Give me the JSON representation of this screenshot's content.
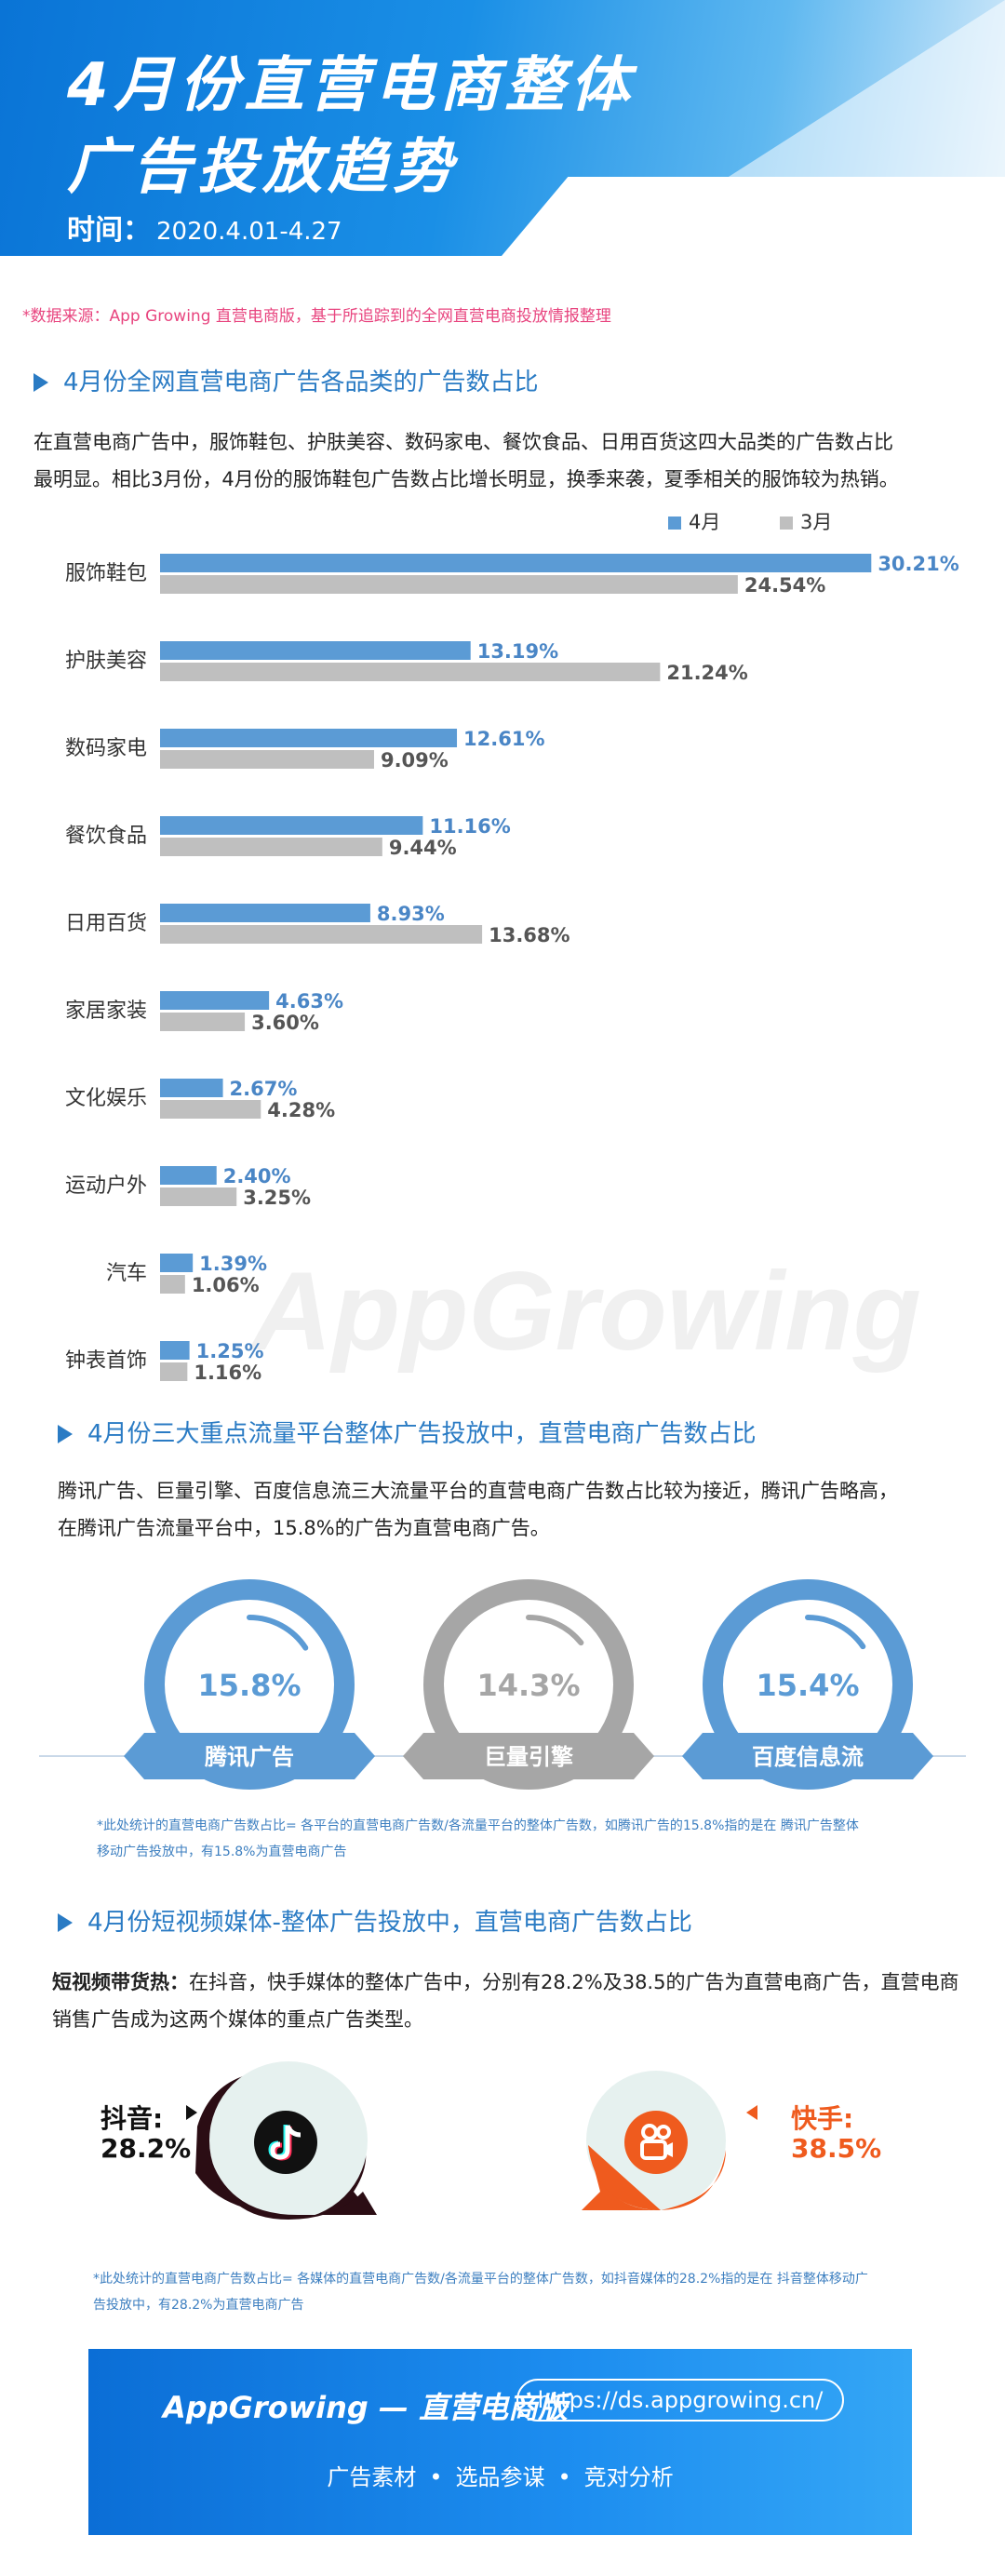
{
  "header": {
    "title_line1": "4月份直营电商整体",
    "title_line2": "广告投放趋势",
    "time_label": "时间：",
    "time_value": "2020.4.01-4.27"
  },
  "source_note": "*数据来源：App Growing 直营电商版，基于所追踪到的全网直营电商投放情报整理",
  "section1": {
    "title": "4月份全网直营电商广告各品类的广告数占比",
    "para_line1": "在直营电商广告中，服饰鞋包、护肤美容、数码家电、餐饮食品、日用百货这四大品类的广告数占比",
    "para_line2": "最明显。相比3月份，4月份的服饰鞋包广告数占比增长明显，换季来袭，夏季相关的服饰较为热销。"
  },
  "chart_data": {
    "type": "bar",
    "orientation": "horizontal",
    "legend_position": "top-right",
    "categories": [
      "服饰鞋包",
      "护肤美容",
      "数码家电",
      "餐饮食品",
      "日用百货",
      "家居家装",
      "文化娱乐",
      "运动户外",
      "汽车",
      "钟表首饰"
    ],
    "series": [
      {
        "name": "4月",
        "values": [
          30.21,
          13.19,
          12.61,
          11.16,
          8.93,
          4.63,
          2.67,
          2.4,
          1.39,
          1.25
        ],
        "labels": [
          "30.21%",
          "13.19%",
          "12.61%",
          "11.16%",
          "8.93%",
          "4.63%",
          "2.67%",
          "2.40%",
          "1.39%",
          "1.25%"
        ],
        "color": "#5b9bd5"
      },
      {
        "name": "3月",
        "values": [
          24.54,
          21.24,
          9.09,
          9.44,
          13.68,
          3.6,
          4.28,
          3.25,
          1.06,
          1.16
        ],
        "labels": [
          "24.54%",
          "21.24%",
          "9.09%",
          "9.44%",
          "13.68%",
          "3.60%",
          "4.28%",
          "3.25%",
          "1.06%",
          "1.16%"
        ],
        "color": "#bfbfbf"
      }
    ],
    "grid": false
  },
  "section2": {
    "title": "4月份三大重点流量平台整体广告投放中，直营电商广告数占比",
    "para_line1": "腾讯广告、巨量引擎、百度信息流三大流量平台的直营电商广告数占比较为接近，腾讯广告略高，",
    "para_line2": "在腾讯广告流量平台中，15.8%的广告为直营电商广告。",
    "platforms": [
      {
        "name": "腾讯广告",
        "value_text": "15.8%",
        "value": 15.8,
        "color": "#5b9bd5"
      },
      {
        "name": "巨量引擎",
        "value_text": "14.3%",
        "value": 14.3,
        "color": "#a6a6a6"
      },
      {
        "name": "百度信息流",
        "value_text": "15.4%",
        "value": 15.4,
        "color": "#5b9bd5"
      }
    ],
    "note_line1": "*此处统计的直营电商广告数占比= 各平台的直营电商广告数/各流量平台的整体广告数，如腾讯广告的15.8%指的是在 腾讯广告整体",
    "note_line2": "移动广告投放中，有15.8%为直营电商广告"
  },
  "section3": {
    "title": "4月份短视频媒体-整体广告投放中，直营电商广告数占比",
    "para_bold": "短视频带货热：",
    "para_rest": "在抖音，快手媒体的整体广告中，分别有28.2%及38.5的广告为直营电商广告，直营电商",
    "para_line2": "销售广告成为这两个媒体的重点广告类型。",
    "douyin": {
      "name": "抖音:",
      "value": "28.2%",
      "value_num": 28.2,
      "color": "#111111"
    },
    "kuaishou": {
      "name": "快手:",
      "value": "38.5%",
      "value_num": 38.5,
      "color": "#ef5b1e"
    },
    "note_line1": "*此处统计的直营电商广告数占比= 各媒体的直营电商广告数/各流量平台的整体广告数，如抖音媒体的28.2%指的是在 抖音整体移动广",
    "note_line2": "告投放中，有28.2%为直营电商广告"
  },
  "watermark": "AppGrowing",
  "footer": {
    "brand": "AppGrowing — 直营电商版",
    "url": "https://ds.appgrowing.cn/",
    "links": [
      "广告素材",
      "选品参谋",
      "竞对分析"
    ]
  }
}
